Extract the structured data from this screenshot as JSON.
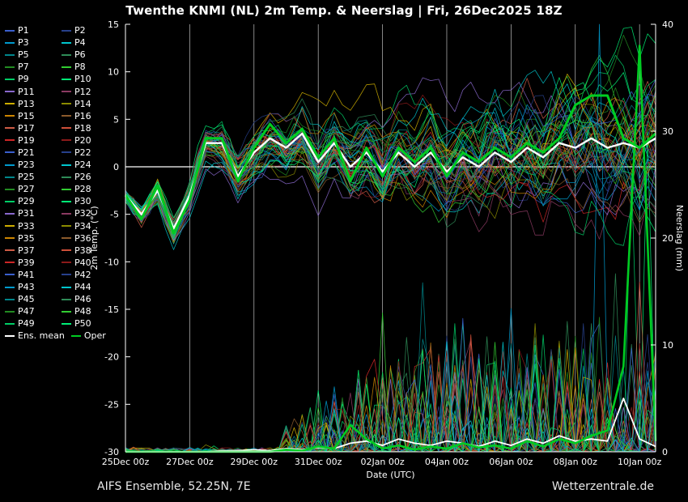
{
  "title": "Twenthe KNMI  (NL)  2m Temp. & Neerslag | Fri, 26Dec2025 18Z",
  "footer": {
    "left": "AIFS Ensemble, 52.25N, 7E",
    "right": "Wetterzentrale.de"
  },
  "legend": {
    "members": [
      "P1",
      "P2",
      "P3",
      "P4",
      "P5",
      "P6",
      "P7",
      "P8",
      "P9",
      "P10",
      "P11",
      "P12",
      "P13",
      "P14",
      "P15",
      "P16",
      "P17",
      "P18",
      "P19",
      "P20",
      "P21",
      "P22",
      "P23",
      "P24",
      "P25",
      "P26",
      "P27",
      "P28",
      "P29",
      "P30",
      "P31",
      "P32",
      "P33",
      "P34",
      "P35",
      "P36",
      "P37",
      "P38",
      "P39",
      "P40",
      "P41",
      "P42",
      "P43",
      "P44",
      "P45",
      "P46",
      "P47",
      "P48",
      "P49",
      "P50"
    ],
    "ens_mean_label": "Ens. mean",
    "oper_label": "Oper",
    "palette": [
      "#3a5fcd",
      "#27408b",
      "#009acd",
      "#00c5cd",
      "#00868b",
      "#2e8b57",
      "#228b22",
      "#32cd32",
      "#00cd66",
      "#00ee76",
      "#8968cd",
      "#8b3a62",
      "#cdad00",
      "#8b8b00",
      "#cd8500",
      "#8b5a2b",
      "#cd5b45",
      "#cd4f39",
      "#cd2626",
      "#8b1a1a"
    ],
    "ens_mean_color": "#ffffff",
    "oper_color": "#00cc22"
  },
  "chart_data": {
    "type": "line",
    "title": "Twenthe KNMI  (NL)  2m Temp. & Neerslag | Fri, 26Dec2025 18Z",
    "xlabel": "Date (UTC)",
    "ylabel_left": "2m Temp. (°C)",
    "ylabel_right": "Neerslag (mm)",
    "x_ticks": [
      "25Dec 00z",
      "27Dec 00z",
      "29Dec 00z",
      "31Dec 00z",
      "02Jan 00z",
      "04Jan 00z",
      "06Jan 00z",
      "08Jan 00z",
      "10Jan 00z"
    ],
    "x_tick_hours": [
      0,
      48,
      96,
      144,
      192,
      240,
      288,
      336,
      384
    ],
    "x_range_hours": [
      0,
      396
    ],
    "ylim_left": [
      -30,
      15
    ],
    "ylim_right": [
      0,
      40
    ],
    "yticks_left": [
      15,
      10,
      5,
      0,
      -5,
      -10,
      -15,
      -20,
      -25,
      -30
    ],
    "yticks_right": [
      40,
      30,
      20,
      10,
      0
    ],
    "time_step_hours": 12,
    "grid": "vertical lines at each date tick, horizontal line at 0 °C",
    "legend_position": "left",
    "series": [
      {
        "name": "Ens. mean 2m temperature",
        "unit": "°C",
        "axis": "left",
        "color": "#ffffff",
        "values": [
          -3,
          -5,
          -2.5,
          -6.5,
          -3,
          2.5,
          2.5,
          -1,
          1.5,
          3,
          2,
          3.5,
          0.5,
          2.5,
          0,
          1.5,
          -0.5,
          1.5,
          0,
          1.5,
          -0.5,
          1,
          0,
          1.5,
          0.5,
          2,
          1,
          2.5,
          2,
          3,
          2,
          2.5,
          2,
          3
        ]
      },
      {
        "name": "Oper 2m temperature",
        "unit": "°C",
        "axis": "left",
        "color": "#00cc22",
        "values": [
          -3,
          -5.5,
          -2,
          -7,
          -3.5,
          3,
          3,
          -1.5,
          2,
          4.5,
          2.5,
          4,
          1,
          3,
          -1.5,
          2,
          -1,
          2,
          0.5,
          2,
          -1,
          1.5,
          0.5,
          2,
          1,
          2.5,
          1.5,
          3,
          6.5,
          7.5,
          7.5,
          3,
          2,
          3.5
        ]
      },
      {
        "name": "Ens. mean precipitation",
        "unit": "mm",
        "axis": "right",
        "color": "#ffffff",
        "values": [
          0,
          0,
          0,
          0,
          0,
          0,
          0.1,
          0.1,
          0.2,
          0.1,
          0.3,
          0.2,
          0.4,
          0.3,
          0.8,
          1,
          0.6,
          1.2,
          0.8,
          0.6,
          1,
          0.8,
          0.5,
          1,
          0.6,
          1.2,
          0.8,
          1.5,
          1,
          1.2,
          1,
          5,
          1.2,
          0.5
        ]
      },
      {
        "name": "Oper precipitation",
        "unit": "mm",
        "axis": "right",
        "color": "#00cc22",
        "values": [
          0,
          0,
          0,
          0,
          0,
          0,
          0,
          0,
          0,
          0,
          0.2,
          0.1,
          0.5,
          0.3,
          2.5,
          1.2,
          0.3,
          0.6,
          0.2,
          0.5,
          0.3,
          0.8,
          0.4,
          0.6,
          0.3,
          1,
          0.5,
          1.2,
          0.8,
          1.5,
          2,
          8,
          38,
          1
        ]
      }
    ],
    "ensemble_members": {
      "count": 50,
      "note": "50 perturbed members P1-P50 drawn as thin coloured lines around the ensemble mean; individual member values are not legibly extractable from the image",
      "temp_spread_deg_start": 0.8,
      "temp_spread_deg_end": 6,
      "precip_spikes": [
        {
          "member": 43,
          "hour": 354,
          "mm": 40
        },
        {
          "member": 10,
          "hour": 390,
          "mm": 30
        },
        {
          "member": 9,
          "hour": 378,
          "mm": 26
        },
        {
          "member": 8,
          "hour": 192,
          "mm": 13
        }
      ]
    }
  }
}
